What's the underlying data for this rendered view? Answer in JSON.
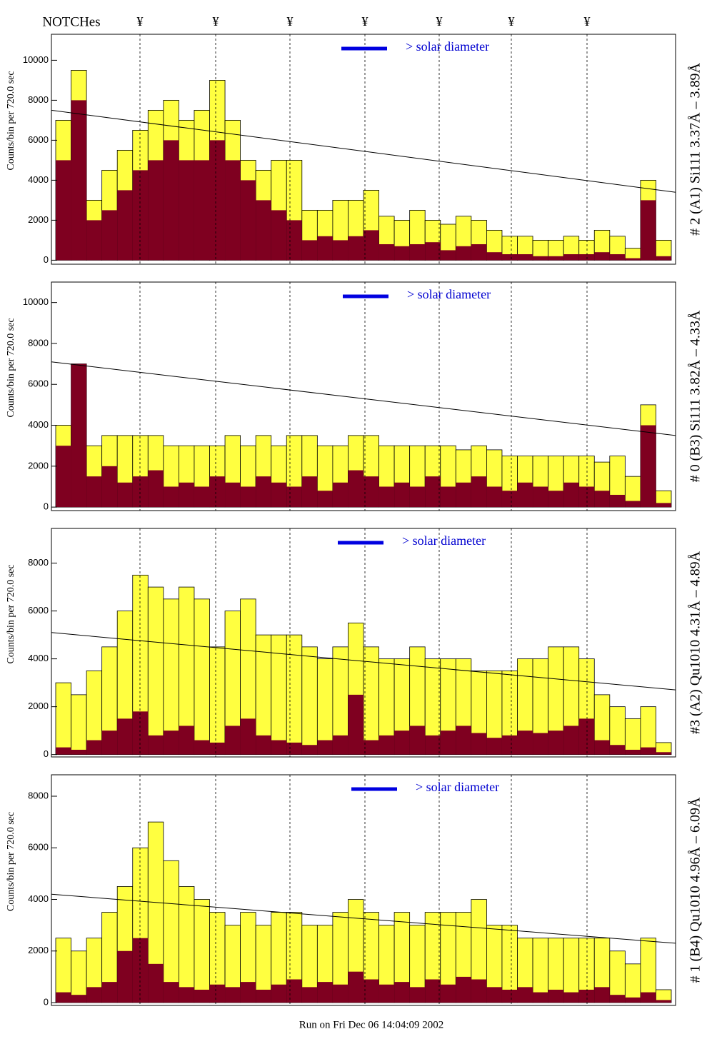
{
  "header": {
    "title": "NOTCHes",
    "notch_labels": [
      "¥",
      "¥",
      "¥",
      "¥",
      "¥",
      "¥",
      "¥"
    ]
  },
  "footer": "Run on Fri Dec 06 14:04:09 2002",
  "chart_data": [
    {
      "type": "histogram",
      "y_label": "Counts/bin per   720.0 sec",
      "side_label": "# 2 (A1) Si111  3.37Å – 3.89Å",
      "legend_label": "> solar diameter",
      "ylim": [
        -200,
        11300
      ],
      "yticks": [
        0,
        2000,
        4000,
        6000,
        8000,
        10000
      ],
      "fit_line": [
        7500,
        3400
      ],
      "series": [
        {
          "color": "#ffff40",
          "values": [
            7000,
            9500,
            3000,
            4500,
            5500,
            6500,
            7500,
            8000,
            7000,
            7500,
            9000,
            7000,
            5000,
            4500,
            5000,
            5000,
            2500,
            2500,
            3000,
            3000,
            3500,
            2200,
            2000,
            2500,
            2000,
            1800,
            2200,
            2000,
            1500,
            1200,
            1200,
            1000,
            1000,
            1200,
            1000,
            1500,
            1200,
            600,
            4000,
            1000
          ]
        },
        {
          "color": "#7f0020",
          "values": [
            5000,
            8000,
            2000,
            2500,
            3500,
            4500,
            5000,
            6000,
            5000,
            5000,
            6000,
            5000,
            4000,
            3000,
            2500,
            2000,
            1000,
            1200,
            1000,
            1200,
            1500,
            800,
            700,
            800,
            900,
            500,
            700,
            800,
            400,
            300,
            300,
            200,
            200,
            300,
            300,
            400,
            300,
            100,
            3000,
            200
          ]
        }
      ]
    },
    {
      "type": "histogram",
      "y_label": "Counts/bin per   720.0 sec",
      "side_label": "# 0 (B3) Si111  3.82Å – 4.33Å",
      "legend_label": "> solar diameter",
      "ylim": [
        -170,
        11000
      ],
      "yticks": [
        0,
        2000,
        4000,
        6000,
        8000,
        10000
      ],
      "fit_line": [
        7100,
        3500
      ],
      "series": [
        {
          "color": "#ffff40",
          "values": [
            4000,
            7000,
            3000,
            3500,
            3500,
            3500,
            3500,
            3000,
            3000,
            3000,
            3000,
            3500,
            3000,
            3500,
            3000,
            3500,
            3500,
            3000,
            3000,
            3500,
            3500,
            3000,
            3000,
            3000,
            3000,
            3000,
            2800,
            3000,
            2800,
            2500,
            2500,
            2500,
            2500,
            2500,
            2500,
            2200,
            2500,
            1500,
            5000,
            800
          ]
        },
        {
          "color": "#7f0020",
          "values": [
            3000,
            7000,
            1500,
            2000,
            1200,
            1500,
            1800,
            1000,
            1200,
            1000,
            1500,
            1200,
            1000,
            1500,
            1200,
            1000,
            1500,
            800,
            1200,
            1800,
            1500,
            1000,
            1200,
            1000,
            1500,
            1000,
            1200,
            1500,
            1000,
            800,
            1200,
            1000,
            800,
            1200,
            1000,
            800,
            600,
            300,
            4000,
            200
          ]
        }
      ]
    },
    {
      "type": "histogram",
      "y_label": "Counts/bin per   720.0 sec",
      "side_label": "#3 (A2) Qu1010  4.31Å – 4.89Å",
      "legend_label": "> solar diameter",
      "ylim": [
        -100,
        9450
      ],
      "yticks": [
        0,
        2000,
        4000,
        6000,
        8000
      ],
      "fit_line": [
        5100,
        2700
      ],
      "series": [
        {
          "color": "#ffff40",
          "values": [
            3000,
            2500,
            3500,
            4500,
            6000,
            7500,
            7000,
            6500,
            7000,
            6500,
            4500,
            6000,
            6500,
            5000,
            5000,
            5000,
            4500,
            4000,
            4500,
            5500,
            4500,
            4000,
            4000,
            4500,
            4000,
            4000,
            4000,
            3500,
            3500,
            3500,
            4000,
            4000,
            4500,
            4500,
            4000,
            2500,
            2000,
            1500,
            2000,
            500
          ]
        },
        {
          "color": "#7f0020",
          "values": [
            300,
            200,
            600,
            1000,
            1500,
            1800,
            800,
            1000,
            1200,
            600,
            500,
            1200,
            1500,
            800,
            600,
            500,
            400,
            600,
            800,
            2500,
            600,
            800,
            1000,
            1200,
            800,
            1000,
            1200,
            900,
            700,
            800,
            1000,
            900,
            1000,
            1200,
            1500,
            600,
            400,
            200,
            300,
            100
          ]
        }
      ]
    },
    {
      "type": "histogram",
      "y_label": "Counts/bin per   720.0 sec",
      "side_label": "# 1 (B4) Qu1010 4.96Å – 6.09Å",
      "legend_label": "> solar diameter",
      "ylim": [
        -110,
        8830
      ],
      "yticks": [
        0,
        2000,
        4000,
        6000,
        8000
      ],
      "fit_line": [
        4200,
        2300
      ],
      "series": [
        {
          "color": "#ffff40",
          "values": [
            2500,
            2000,
            2500,
            3500,
            4500,
            6000,
            7000,
            5500,
            4500,
            4000,
            3500,
            3000,
            3500,
            3000,
            3500,
            3500,
            3000,
            3000,
            3500,
            4000,
            3500,
            3000,
            3500,
            3000,
            3500,
            3500,
            3500,
            4000,
            3000,
            3000,
            2500,
            2500,
            2500,
            2500,
            2500,
            2500,
            2000,
            1500,
            2500,
            500
          ]
        },
        {
          "color": "#7f0020",
          "values": [
            400,
            300,
            600,
            800,
            2000,
            2500,
            1500,
            800,
            600,
            500,
            700,
            600,
            800,
            500,
            700,
            900,
            600,
            800,
            700,
            1200,
            900,
            700,
            800,
            600,
            900,
            700,
            1000,
            900,
            600,
            500,
            600,
            400,
            500,
            400,
            500,
            600,
            300,
            200,
            400,
            100
          ]
        }
      ]
    }
  ]
}
